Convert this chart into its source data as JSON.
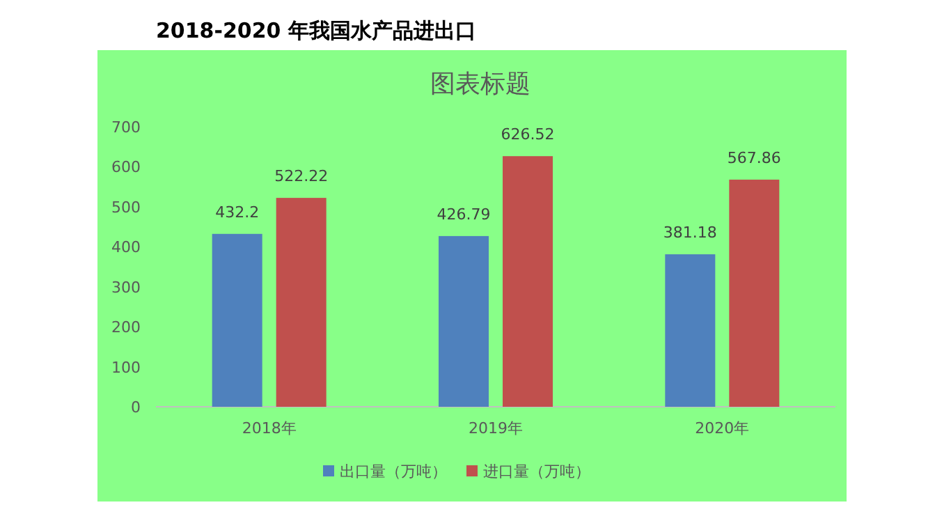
{
  "chart_data": {
    "type": "bar",
    "title": "2018-2020 年我国水产品进出口",
    "subtitle": "图表标题",
    "categories": [
      "2018年",
      "2019年",
      "2020年"
    ],
    "series": [
      {
        "name": "出口量（万吨）",
        "color": "#4f81bd",
        "values": [
          432.2,
          426.79,
          381.18
        ]
      },
      {
        "name": "进口量（万吨）",
        "color": "#c0504d",
        "values": [
          522.22,
          626.52,
          567.86
        ]
      }
    ],
    "ylim": [
      0,
      700
    ],
    "yticks": [
      0,
      100,
      200,
      300,
      400,
      500,
      600,
      700
    ],
    "grid": false,
    "legend": "bottom",
    "data_labels": true
  }
}
